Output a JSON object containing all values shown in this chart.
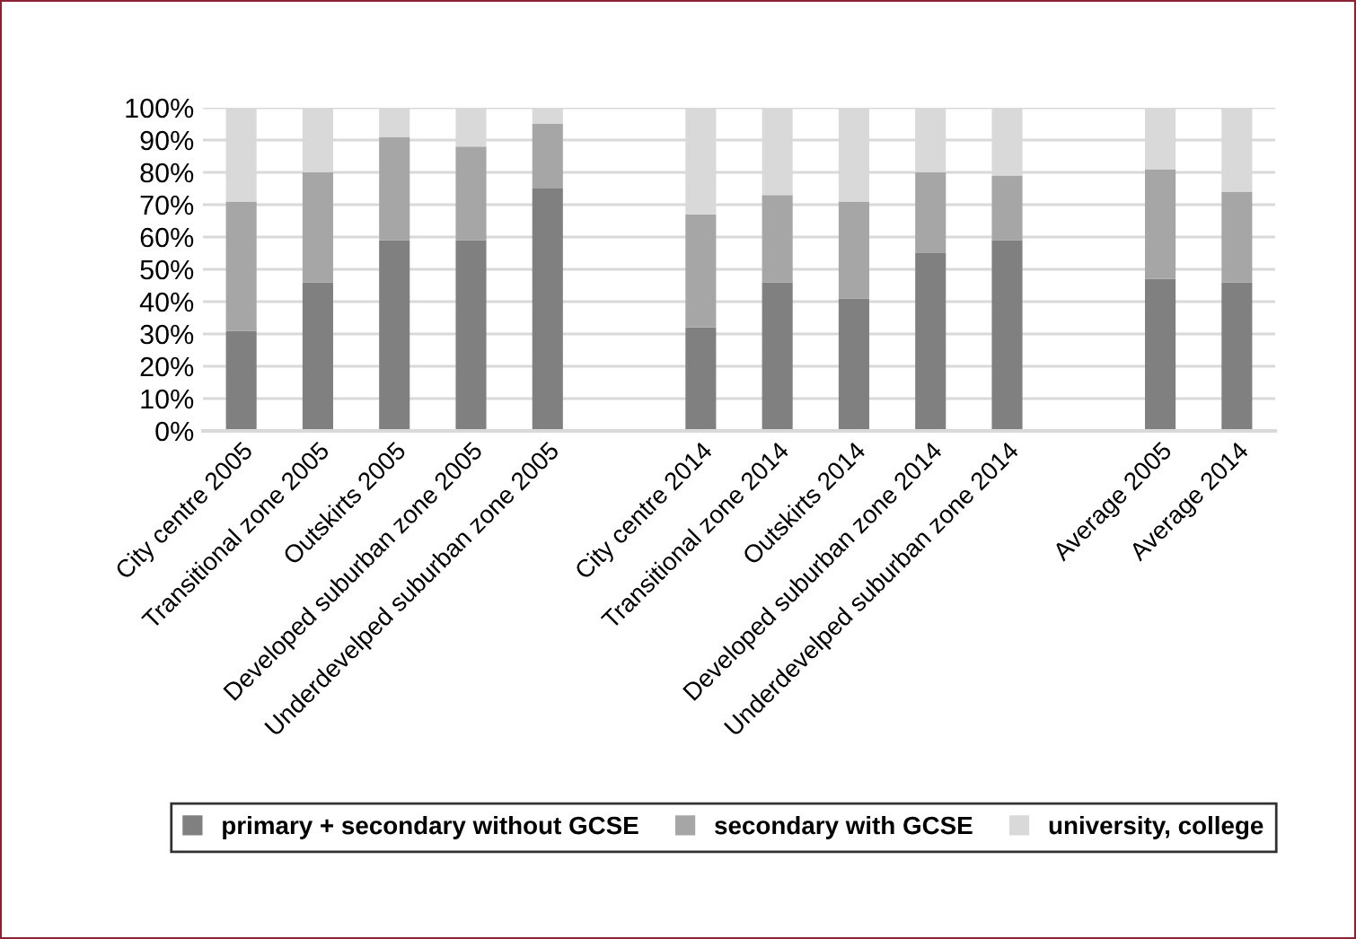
{
  "chart_data": {
    "type": "bar",
    "stacked": true,
    "categories": [
      "City centre 2005",
      "Transitional zone 2005",
      "Outskirts 2005",
      "Developed suburban zone 2005",
      "Underdevelped suburban zone 2005",
      null,
      "City centre 2014",
      "Transitional zone 2014",
      "Outskirts 2014",
      "Developed suburban zone 2014",
      "Underdevelped suburban zone 2014",
      null,
      "Average 2005",
      "Average 2014"
    ],
    "series": [
      {
        "name": "primary + secondary without GCSE",
        "color": "#808080",
        "values": [
          31,
          46,
          59,
          59,
          75,
          null,
          32,
          46,
          41,
          55,
          59,
          null,
          47,
          46
        ]
      },
      {
        "name": "secondary with GCSE",
        "color": "#a6a6a6",
        "values": [
          40,
          34,
          32,
          29,
          20,
          null,
          35,
          27,
          30,
          25,
          20,
          null,
          34,
          28
        ]
      },
      {
        "name": "university, college",
        "color": "#d9d9d9",
        "values": [
          29,
          20,
          9,
          12,
          5,
          null,
          33,
          27,
          29,
          20,
          21,
          null,
          19,
          26
        ]
      }
    ],
    "ylim": [
      0,
      100
    ],
    "yticks": [
      {
        "value": 0,
        "label": "0%"
      },
      {
        "value": 10,
        "label": "10%"
      },
      {
        "value": 20,
        "label": "20%"
      },
      {
        "value": 30,
        "label": "30%"
      },
      {
        "value": 40,
        "label": "40%"
      },
      {
        "value": 50,
        "label": "50%"
      },
      {
        "value": 60,
        "label": "60%"
      },
      {
        "value": 70,
        "label": "70%"
      },
      {
        "value": 80,
        "label": "80%"
      },
      {
        "value": 90,
        "label": "90%"
      },
      {
        "value": 100,
        "label": "100%"
      }
    ],
    "grid": "y",
    "legend": "bottom"
  }
}
